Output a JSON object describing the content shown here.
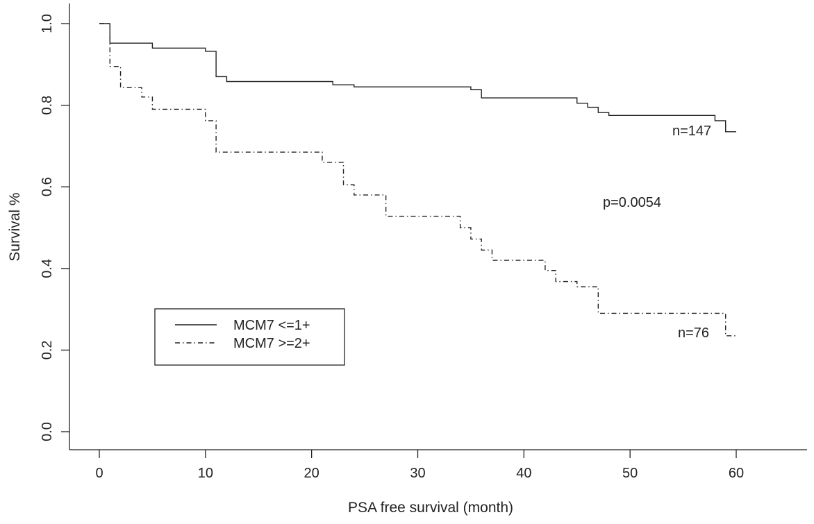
{
  "chart_data": {
    "type": "line",
    "xlabel": "PSA free survival (month)",
    "ylabel": "Survival %",
    "xlim": [
      0,
      60
    ],
    "ylim": [
      0,
      1
    ],
    "x_ticks": [
      "0",
      "10",
      "20",
      "30",
      "40",
      "50",
      "60"
    ],
    "y_ticks": [
      "0.0",
      "0.2",
      "0.4",
      "0.6",
      "0.8",
      "1.0"
    ],
    "grid": false,
    "legend": {
      "position": "lower-left",
      "entries": [
        "MCM7 <=1+",
        "MCM7 >=2+"
      ]
    },
    "series": [
      {
        "name": "MCM7 <=1+",
        "line_style": "solid",
        "steps": [
          [
            0,
            1.0
          ],
          [
            1,
            0.952
          ],
          [
            5,
            0.94
          ],
          [
            10,
            0.932
          ],
          [
            11,
            0.87
          ],
          [
            12,
            0.858
          ],
          [
            22,
            0.85
          ],
          [
            24,
            0.845
          ],
          [
            35,
            0.838
          ],
          [
            36,
            0.818
          ],
          [
            45,
            0.805
          ],
          [
            46,
            0.795
          ],
          [
            47,
            0.782
          ],
          [
            48,
            0.775
          ],
          [
            58,
            0.762
          ],
          [
            59,
            0.735
          ],
          [
            60,
            0.735
          ]
        ],
        "annotation": "n=147"
      },
      {
        "name": "MCM7 >=2+",
        "line_style": "dash-dot",
        "steps": [
          [
            0,
            1.0
          ],
          [
            1,
            0.895
          ],
          [
            2,
            0.843
          ],
          [
            4,
            0.82
          ],
          [
            5,
            0.79
          ],
          [
            10,
            0.762
          ],
          [
            11,
            0.685
          ],
          [
            21,
            0.66
          ],
          [
            23,
            0.605
          ],
          [
            24,
            0.58
          ],
          [
            27,
            0.528
          ],
          [
            34,
            0.5
          ],
          [
            35,
            0.472
          ],
          [
            36,
            0.445
          ],
          [
            37,
            0.42
          ],
          [
            42,
            0.395
          ],
          [
            43,
            0.368
          ],
          [
            45,
            0.355
          ],
          [
            47,
            0.29
          ],
          [
            59,
            0.235
          ],
          [
            60,
            0.235
          ]
        ],
        "annotation": "n=76"
      }
    ],
    "annotations": [
      "p=0.0054"
    ]
  }
}
